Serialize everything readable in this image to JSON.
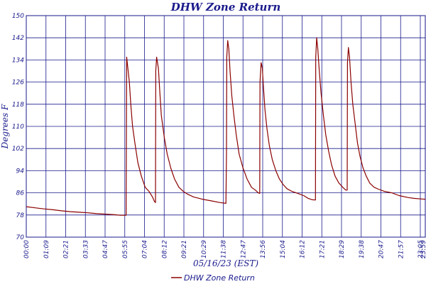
{
  "chart_data": {
    "type": "line",
    "title": "DHW Zone Return",
    "xlabel": "05/16/23 (EST)",
    "ylabel": "Degrees F",
    "ylim": [
      70,
      150
    ],
    "y_ticks": [
      "70",
      "78",
      "86",
      "94",
      "102",
      "110",
      "118",
      "126",
      "134",
      "142",
      "150"
    ],
    "x_ticks": [
      "00:00",
      "01:09",
      "02:21",
      "03:33",
      "04:47",
      "05:55",
      "07:04",
      "08:12",
      "09:21",
      "10:29",
      "11:38",
      "12:47",
      "13:56",
      "15:04",
      "16:12",
      "17:21",
      "18:29",
      "19:38",
      "20:47",
      "21:57",
      "23:05",
      "23:59"
    ],
    "grid": true,
    "legend_position": "bottom",
    "series": [
      {
        "name": "DHW Zone Return",
        "color": "#8b0000",
        "points": [
          [
            0,
            81
          ],
          [
            30,
            80.6
          ],
          [
            60,
            80.2
          ],
          [
            90,
            79.9
          ],
          [
            120,
            79.5
          ],
          [
            150,
            79.2
          ],
          [
            180,
            79
          ],
          [
            210,
            78.8
          ],
          [
            240,
            78.5
          ],
          [
            270,
            78.3
          ],
          [
            300,
            78.1
          ],
          [
            320,
            77.9
          ],
          [
            340,
            77.9
          ],
          [
            342,
            135
          ],
          [
            346,
            131
          ],
          [
            351,
            126
          ],
          [
            356,
            118
          ],
          [
            362,
            110
          ],
          [
            370,
            104
          ],
          [
            380,
            97
          ],
          [
            392,
            92
          ],
          [
            405,
            88
          ],
          [
            418,
            86.5
          ],
          [
            430,
            84.5
          ],
          [
            436,
            83
          ],
          [
            440,
            82.5
          ],
          [
            441,
            130
          ],
          [
            444,
            135
          ],
          [
            450,
            131
          ],
          [
            455,
            122
          ],
          [
            460,
            114
          ],
          [
            470,
            106
          ],
          [
            480,
            100
          ],
          [
            492,
            95
          ],
          [
            505,
            91
          ],
          [
            520,
            88
          ],
          [
            535,
            86.5
          ],
          [
            550,
            85.5
          ],
          [
            570,
            84.5
          ],
          [
            600,
            83.7
          ],
          [
            630,
            83.1
          ],
          [
            660,
            82.5
          ],
          [
            680,
            82.2
          ],
          [
            682,
            100
          ],
          [
            683,
            135
          ],
          [
            686,
            141
          ],
          [
            690,
            138
          ],
          [
            694,
            130
          ],
          [
            700,
            121
          ],
          [
            707,
            114
          ],
          [
            715,
            107
          ],
          [
            725,
            100
          ],
          [
            738,
            95
          ],
          [
            752,
            91
          ],
          [
            767,
            88
          ],
          [
            780,
            87
          ],
          [
            790,
            86
          ],
          [
            795,
            85.8
          ],
          [
            796,
            126
          ],
          [
            800,
            133
          ],
          [
            804,
            131
          ],
          [
            808,
            124
          ],
          [
            813,
            116
          ],
          [
            820,
            109
          ],
          [
            828,
            103
          ],
          [
            838,
            98
          ],
          [
            850,
            94
          ],
          [
            862,
            91
          ],
          [
            875,
            89
          ],
          [
            888,
            87.5
          ],
          [
            905,
            86.5
          ],
          [
            925,
            85.8
          ],
          [
            945,
            85
          ],
          [
            960,
            84
          ],
          [
            975,
            83.5
          ],
          [
            985,
            83.4
          ],
          [
            986,
            135
          ],
          [
            989,
            142
          ],
          [
            993,
            138
          ],
          [
            998,
            130
          ],
          [
            1004,
            122
          ],
          [
            1012,
            114
          ],
          [
            1020,
            107
          ],
          [
            1030,
            101
          ],
          [
            1040,
            96
          ],
          [
            1052,
            92
          ],
          [
            1065,
            89.5
          ],
          [
            1078,
            88
          ],
          [
            1088,
            87
          ],
          [
            1093,
            87
          ],
          [
            1094,
            133
          ],
          [
            1097,
            138.5
          ],
          [
            1101,
            135
          ],
          [
            1106,
            126
          ],
          [
            1112,
            118
          ],
          [
            1120,
            111
          ],
          [
            1128,
            104
          ],
          [
            1137,
            99
          ],
          [
            1147,
            95
          ],
          [
            1158,
            92
          ],
          [
            1170,
            89.5
          ],
          [
            1185,
            88
          ],
          [
            1200,
            87.3
          ],
          [
            1220,
            86.5
          ],
          [
            1245,
            86
          ],
          [
            1270,
            85
          ],
          [
            1300,
            84.3
          ],
          [
            1320,
            84
          ],
          [
            1345,
            83.8
          ],
          [
            1359,
            83.7
          ]
        ]
      }
    ]
  }
}
